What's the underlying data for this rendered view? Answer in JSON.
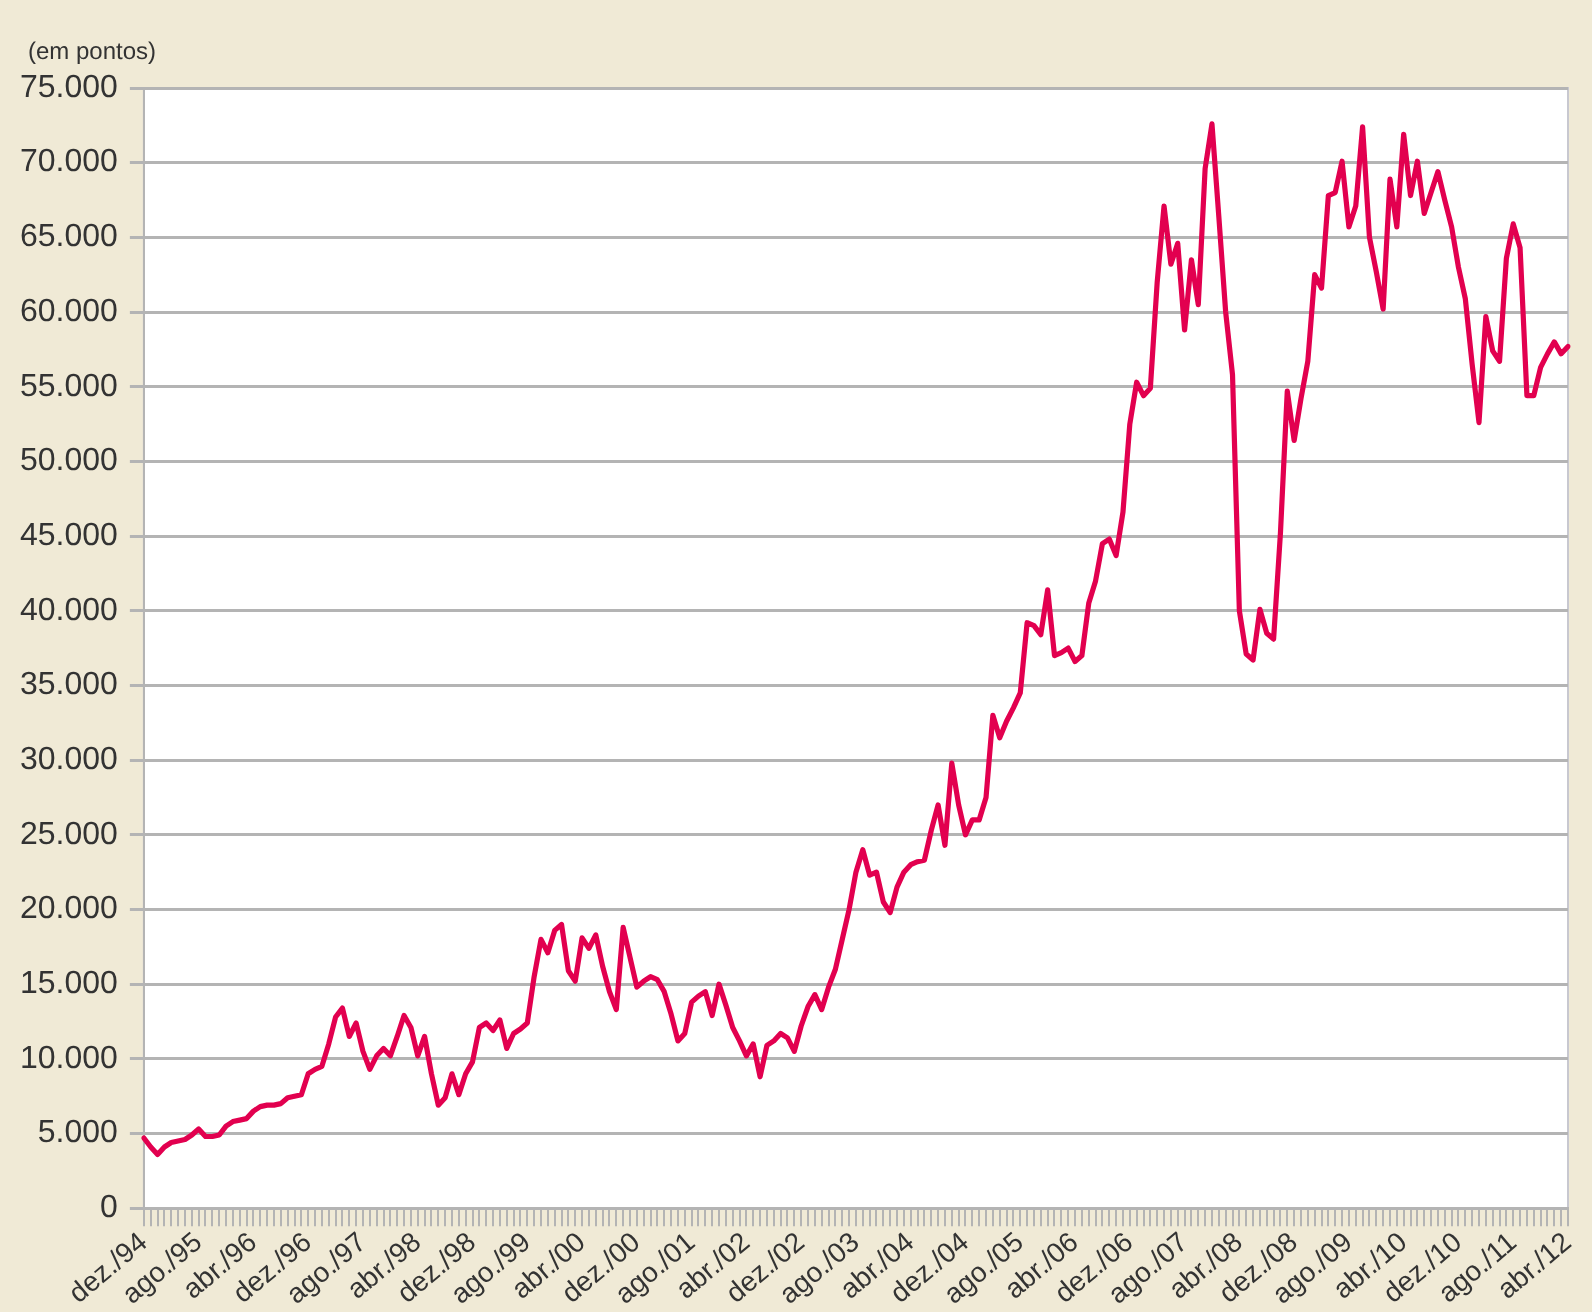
{
  "chart_data": {
    "type": "line",
    "ylabel": "(em pontos)",
    "categories": [
      "dez./94",
      null,
      null,
      null,
      null,
      null,
      null,
      null,
      "ago./95",
      null,
      null,
      null,
      null,
      null,
      null,
      null,
      "abr./96",
      null,
      null,
      null,
      null,
      null,
      null,
      null,
      "dez./96",
      null,
      null,
      null,
      null,
      null,
      null,
      null,
      "ago./97",
      null,
      null,
      null,
      null,
      null,
      null,
      null,
      "abr./98",
      null,
      null,
      null,
      null,
      null,
      null,
      null,
      "dez./98",
      null,
      null,
      null,
      null,
      null,
      null,
      null,
      "ago./99",
      null,
      null,
      null,
      null,
      null,
      null,
      null,
      "abr./00",
      null,
      null,
      null,
      null,
      null,
      null,
      null,
      "dez./00",
      null,
      null,
      null,
      null,
      null,
      null,
      null,
      "ago./01",
      null,
      null,
      null,
      null,
      null,
      null,
      null,
      "abr./02",
      null,
      null,
      null,
      null,
      null,
      null,
      null,
      "dez./02",
      null,
      null,
      null,
      null,
      null,
      null,
      null,
      "ago./03",
      null,
      null,
      null,
      null,
      null,
      null,
      null,
      "abr./04",
      null,
      null,
      null,
      null,
      null,
      null,
      null,
      "dez./04",
      null,
      null,
      null,
      null,
      null,
      null,
      null,
      "ago./05",
      null,
      null,
      null,
      null,
      null,
      null,
      null,
      "abr./06",
      null,
      null,
      null,
      null,
      null,
      null,
      null,
      "dez./06",
      null,
      null,
      null,
      null,
      null,
      null,
      null,
      "ago./07",
      null,
      null,
      null,
      null,
      null,
      null,
      null,
      "abr./08",
      null,
      null,
      null,
      null,
      null,
      null,
      null,
      "dez./08",
      null,
      null,
      null,
      null,
      null,
      null,
      null,
      "ago./09",
      null,
      null,
      null,
      null,
      null,
      null,
      null,
      "abr./10",
      null,
      null,
      null,
      null,
      null,
      null,
      null,
      "dez./10",
      null,
      null,
      null,
      null,
      null,
      null,
      null,
      "ago./11",
      null,
      null,
      null,
      null,
      null,
      null,
      null,
      "abr./12"
    ],
    "series": [
      {
        "color": "#e2004f",
        "values": [
          4700,
          4100,
          3600,
          4100,
          4400,
          4500,
          4600,
          4900,
          5300,
          4800,
          4800,
          4900,
          5500,
          5800,
          5900,
          6000,
          6500,
          6800,
          6900,
          6900,
          7000,
          7400,
          7500,
          7600,
          9000,
          9300,
          9500,
          11000,
          12800,
          13400,
          11500,
          12400,
          10500,
          9300,
          10200,
          10700,
          10200,
          11500,
          12900,
          12100,
          10200,
          11500,
          9000,
          6900,
          7400,
          9000,
          7600,
          9000,
          9800,
          12100,
          12400,
          11900,
          12600,
          10700,
          11700,
          12000,
          12400,
          15500,
          18000,
          17100,
          18600,
          19000,
          15900,
          15200,
          18100,
          17400,
          18300,
          16200,
          14500,
          13300,
          18800,
          16800,
          14800,
          15200,
          15500,
          15300,
          14500,
          13000,
          11200,
          11700,
          13800,
          14200,
          14500,
          12900,
          15000,
          13600,
          12100,
          11200,
          10200,
          11000,
          8800,
          10900,
          11200,
          11700,
          11400,
          10500,
          12200,
          13500,
          14300,
          13300,
          14800,
          16000,
          18000,
          20000,
          22500,
          24000,
          22300,
          22500,
          20500,
          19800,
          21500,
          22500,
          23000,
          23200,
          23300,
          25300,
          27000,
          24300,
          29800,
          27000,
          25000,
          26000,
          26000,
          27500,
          33000,
          31500,
          32600,
          33500,
          34500,
          39200,
          39000,
          38400,
          41400,
          37000,
          37200,
          37500,
          36600,
          37000,
          40500,
          42000,
          44500,
          44800,
          43700,
          46600,
          52500,
          55300,
          54400,
          54900,
          62000,
          67100,
          63200,
          64600,
          58800,
          63500,
          60500,
          69600,
          72600,
          66400,
          60000,
          55800,
          40000,
          37100,
          36700,
          40100,
          38500,
          38100,
          45200,
          54700,
          51400,
          54200,
          56700,
          62500,
          61600,
          67800,
          68000,
          70100,
          65700,
          67100,
          72400,
          65000,
          62700,
          60200,
          68900,
          65700,
          71900,
          67800,
          70100,
          66600,
          68000,
          69400,
          67500,
          65700,
          63000,
          60900,
          56500,
          52600,
          59700,
          57400,
          56700,
          63600,
          65900,
          64300,
          54400,
          54400,
          56300,
          57200,
          58000,
          57200,
          57700
        ]
      }
    ],
    "ylim": [
      0,
      75000
    ],
    "yticks": [
      0,
      {
        "value": 5000,
        "label": "5.000"
      },
      {
        "value": 10000,
        "label": "10.000"
      },
      {
        "value": 15000,
        "label": "15.000"
      },
      {
        "value": 20000,
        "label": "20.000"
      },
      {
        "value": 25000,
        "label": "25.000"
      },
      {
        "value": 30000,
        "label": "30.000"
      },
      {
        "value": 35000,
        "label": "35.000"
      },
      {
        "value": 40000,
        "label": "40.000"
      },
      {
        "value": 45000,
        "label": "45.000"
      },
      {
        "value": 50000,
        "label": "50.000"
      },
      {
        "value": 55000,
        "label": "55.000"
      },
      {
        "value": 60000,
        "label": "60.000"
      },
      {
        "value": 65000,
        "label": "65.000"
      },
      {
        "value": 70000,
        "label": "70.000"
      },
      {
        "value": 75000,
        "label": "75.000"
      }
    ],
    "grid": "y",
    "marker": "none",
    "line_style": "solid"
  }
}
